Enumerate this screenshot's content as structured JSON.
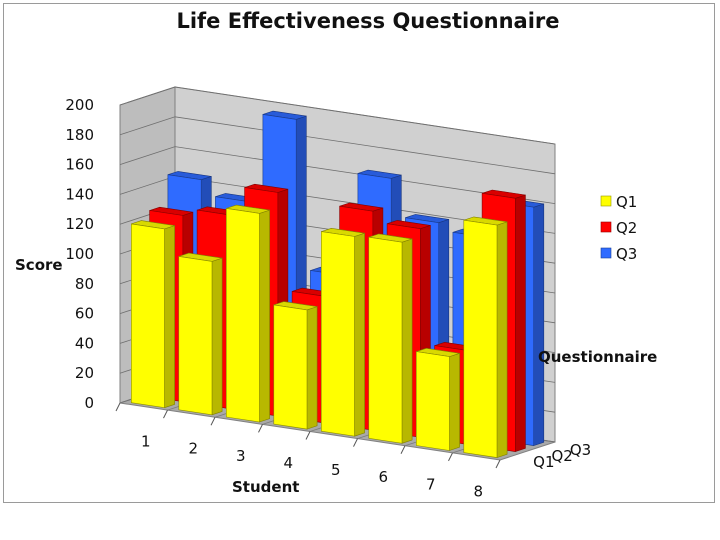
{
  "chart_data": {
    "type": "bar",
    "title": "Life Effectiveness Questionnaire",
    "xlabel": "Student",
    "ylabel": "Score",
    "zlabel": "Questionnaire",
    "categories": [
      "1",
      "2",
      "3",
      "4",
      "5",
      "6",
      "7",
      "8"
    ],
    "ylim": [
      0,
      200
    ],
    "yticks": [
      0,
      20,
      40,
      60,
      80,
      100,
      120,
      140,
      160,
      180,
      200
    ],
    "grid": true,
    "legend_position": "right",
    "series": [
      {
        "name": "Q1",
        "color": "#ffff00",
        "values": [
          120,
          103,
          140,
          80,
          134,
          135,
          63,
          156
        ]
      },
      {
        "name": "Q2",
        "color": "#ff0000",
        "values": [
          125,
          130,
          150,
          85,
          147,
          140,
          63,
          170
        ]
      },
      {
        "name": "Q3",
        "color": "#2f6bff",
        "values": [
          145,
          135,
          195,
          95,
          165,
          140,
          135,
          160
        ]
      }
    ]
  }
}
